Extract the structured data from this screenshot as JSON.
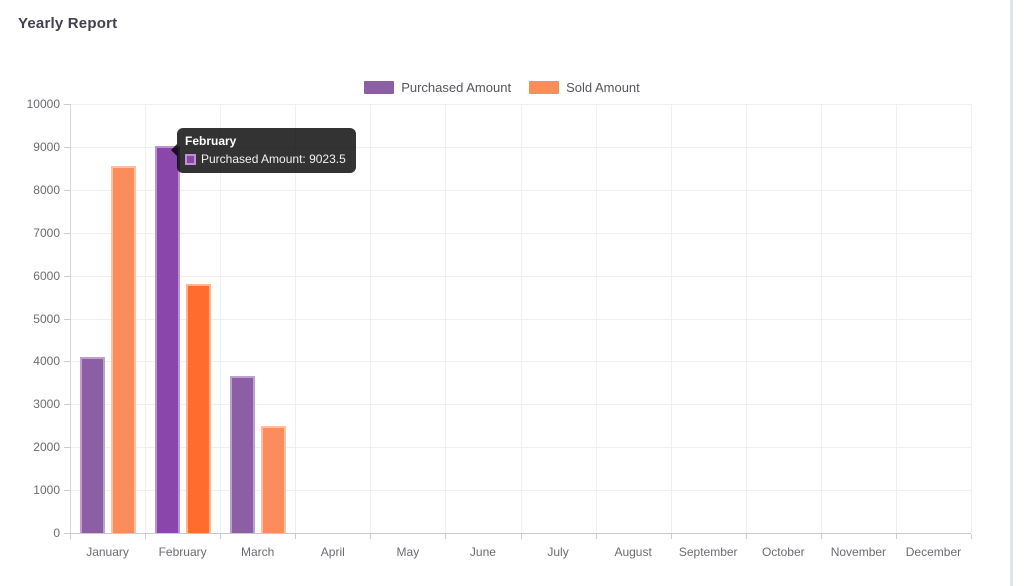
{
  "page": {
    "title": "Yearly Report"
  },
  "tooltip": {
    "title": "February",
    "label": "Purchased Amount: 9023.5"
  },
  "colors": {
    "background": "#ffffff",
    "title_text": "#41414f",
    "grid": "#f0f0f2",
    "axis": "#c9c9cc",
    "tick_label": "#6b6b72",
    "legend_label": "#55575c",
    "tooltip_background": "rgba(0,0,0,0.8)",
    "scrollbar": "#dfe7ee"
  },
  "chart_data": {
    "type": "bar",
    "title": "Yearly Report",
    "categories": [
      "January",
      "February",
      "March",
      "April",
      "May",
      "June",
      "July",
      "August",
      "September",
      "October",
      "November",
      "December"
    ],
    "series": [
      {
        "name": "Purchased Amount",
        "color": "#8c5ea3",
        "border_color": "#bda0cd",
        "highlight_color": "#8a46a8",
        "highlight_border": "#bb92d4",
        "values": [
          4100,
          9023.5,
          3650,
          0,
          0,
          0,
          0,
          0,
          0,
          0,
          0,
          0
        ]
      },
      {
        "name": "Sold Amount",
        "color": "#fb8c5c",
        "border_color": "#fdc0a2",
        "highlight_color": "#ff6c2e",
        "highlight_border": "#ffb68e",
        "values": [
          8550,
          5800,
          2500,
          0,
          0,
          0,
          0,
          0,
          0,
          0,
          0,
          0
        ]
      }
    ],
    "highlighted_category": "February",
    "xlabel": "",
    "ylabel": "",
    "ylim": [
      0,
      10000
    ],
    "ytick_step": 1000,
    "grid": true,
    "legend_position": "top"
  }
}
